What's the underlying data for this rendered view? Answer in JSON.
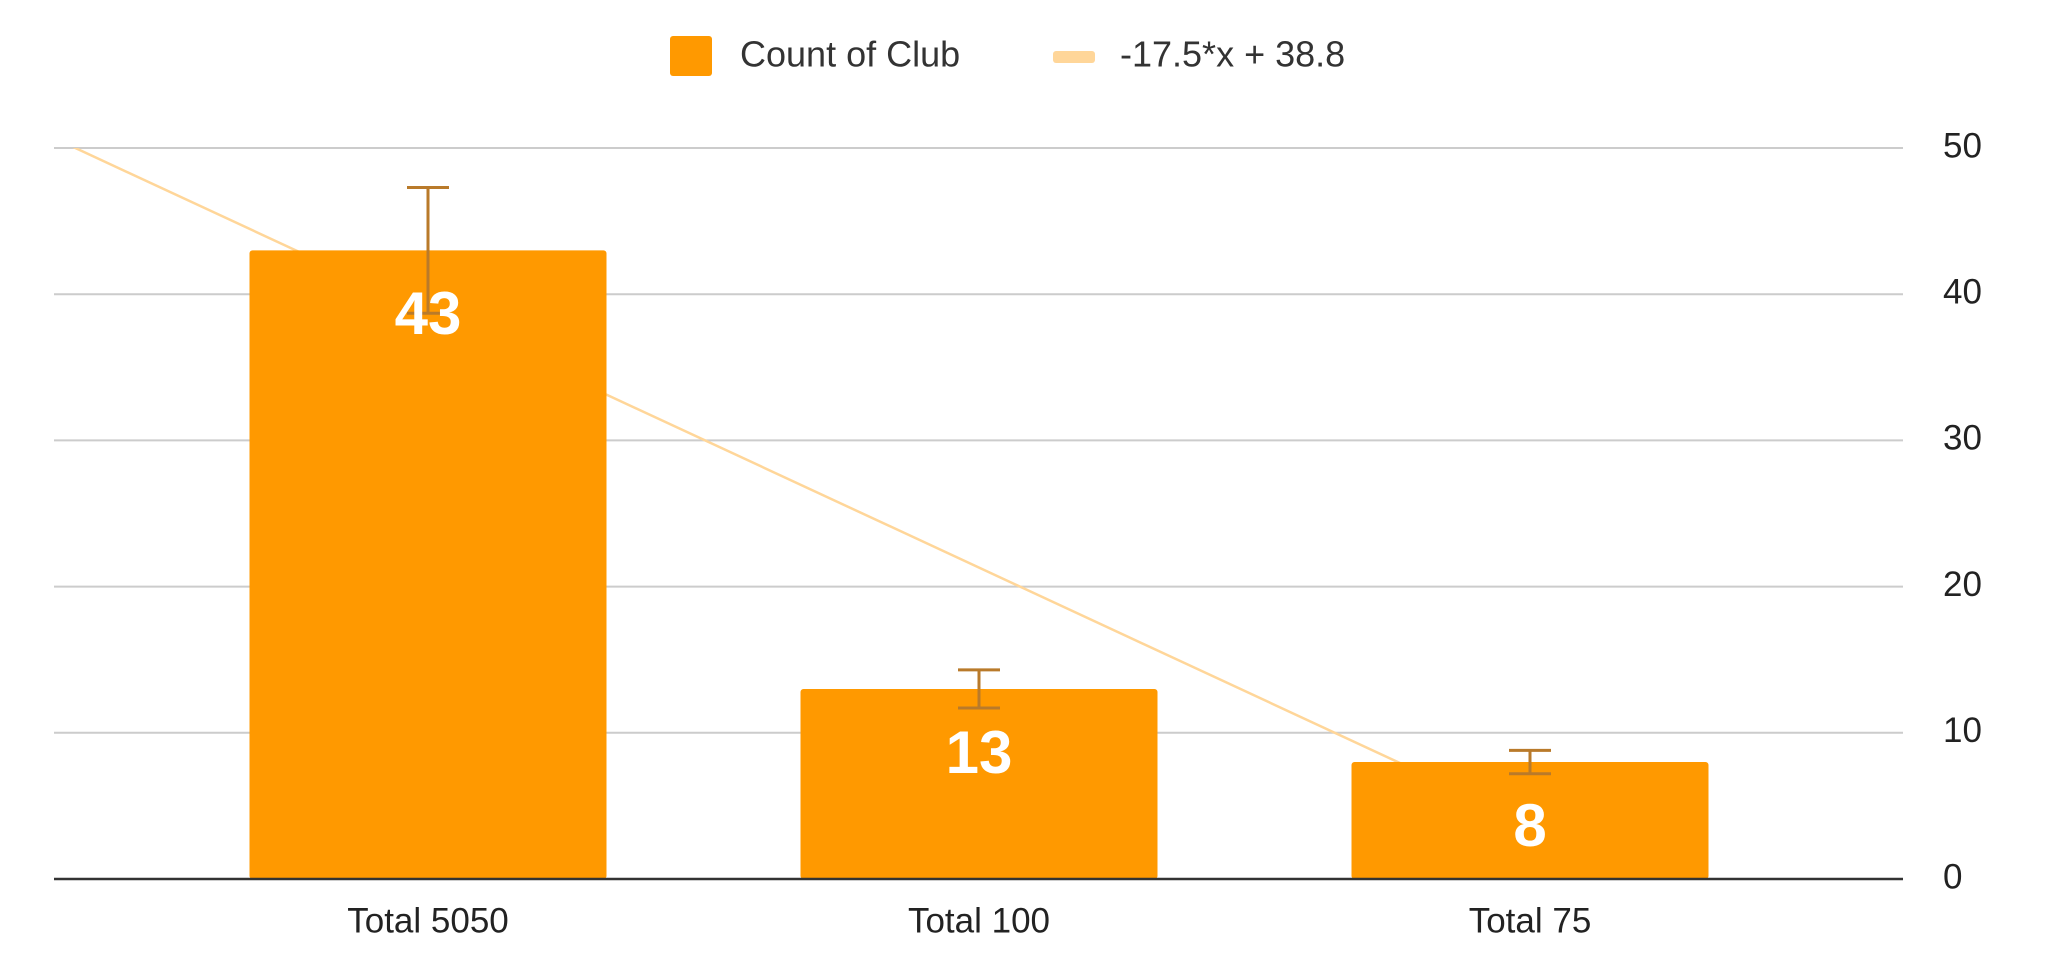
{
  "chart_data": {
    "type": "bar",
    "categories": [
      "Total 5050",
      "Total 100",
      "Total 75"
    ],
    "series": [
      {
        "name": "Count of Club",
        "color": "#ff9900",
        "values": [
          43,
          13,
          8
        ],
        "errors": [
          4.3,
          1.3,
          0.8
        ]
      }
    ],
    "error_color": "#b97a2a",
    "trendline": {
      "label": "-17.5*x + 38.8",
      "slope": -17.5,
      "intercept": 38.8,
      "color": "#ffd699"
    },
    "ylim": [
      0,
      50
    ],
    "yticks": [
      0,
      10,
      20,
      30,
      40,
      50
    ],
    "y_axis_side": "right",
    "grid": true,
    "legend": "top"
  }
}
